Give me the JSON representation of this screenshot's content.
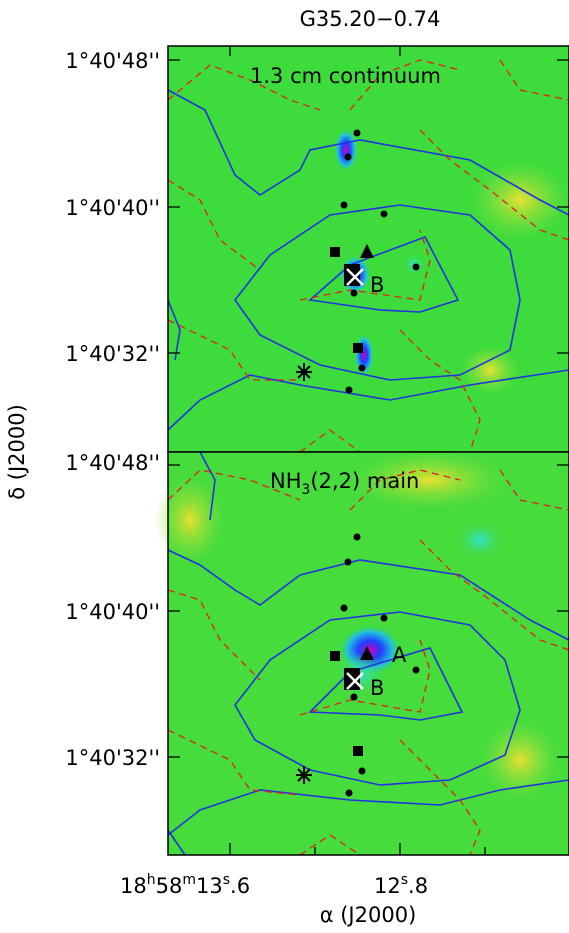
{
  "title": "G35.20−0.74",
  "panels": [
    {
      "label": {
        "parts": [
          "1.3 cm continuum"
        ]
      },
      "annotations": [
        "B"
      ]
    },
    {
      "label": {
        "parts": [
          "NH",
          "3",
          "(2,2) main"
        ]
      },
      "annotations": [
        "A",
        "B"
      ]
    }
  ],
  "yticks": [
    [
      "1°40'48''",
      "1°40'40''",
      "1°40'32''"
    ],
    [
      "1°40'48''",
      "1°40'40''",
      "1°40'32''"
    ]
  ],
  "xticks": [
    {
      "parts": [
        "18",
        "h",
        "58",
        "m",
        "13",
        "s",
        ".6"
      ]
    },
    {
      "parts": [
        "12",
        "s",
        ".8"
      ]
    }
  ],
  "ylabel": "δ (J2000)",
  "xlabel": "α (J2000)"
}
